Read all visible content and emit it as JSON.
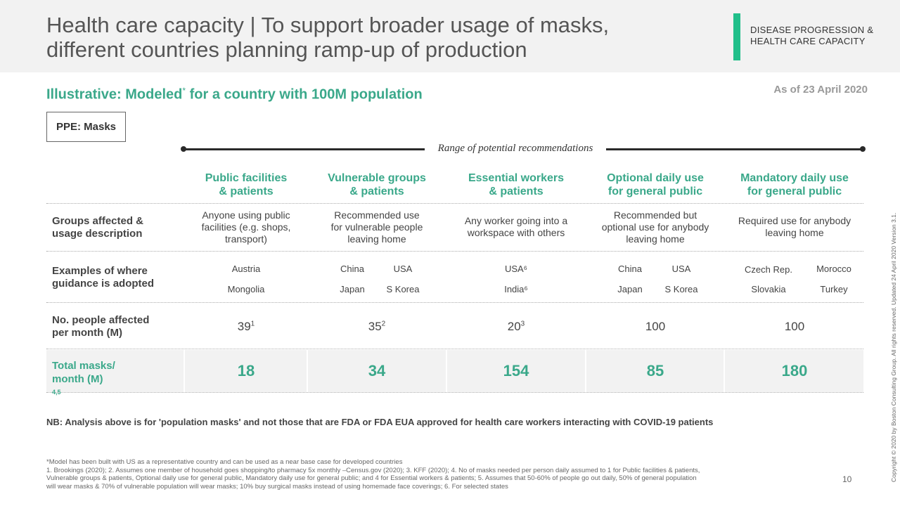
{
  "header": {
    "title_line1": "Health care capacity | To support broader usage of masks,",
    "title_line2": "different countries planning ramp-up of production",
    "section_line1": "DISEASE PROGRESSION &",
    "section_line2": "HEALTH CARE CAPACITY",
    "section_color": "#21bf8a"
  },
  "subtitle": {
    "text_a": "Illustrative: Modeled",
    "marker": "*",
    "text_b": " for a country with 100M population",
    "as_of": "As of 23 April 2020"
  },
  "tag": "PPE: Masks",
  "range_label": "Range of potential recommendations",
  "columns": [
    {
      "line1": "Public facilities",
      "line2": "& patients"
    },
    {
      "line1": "Vulnerable groups",
      "line2": "& patients"
    },
    {
      "line1": "Essential workers",
      "line2": "& patients"
    },
    {
      "line1": "Optional daily use",
      "line2": "for general public"
    },
    {
      "line1": "Mandatory daily use",
      "line2": "for general public"
    }
  ],
  "rows": {
    "groups": {
      "label1": "Groups affected &",
      "label2": "usage description",
      "cells": [
        [
          "Anyone using public",
          "facilities (e.g. shops,",
          "transport)"
        ],
        [
          "Recommended use",
          "for vulnerable people",
          "leaving home"
        ],
        [
          "Any worker going into a",
          "workspace with others"
        ],
        [
          "Recommended but",
          "optional use for anybody",
          "leaving home"
        ],
        [
          "Required use for anybody",
          "leaving home"
        ]
      ]
    },
    "examples": {
      "label1": "Examples of where",
      "label2": "guidance is adopted",
      "c1": [
        "Austria",
        "Mongolia"
      ],
      "c2": [
        "China",
        "USA",
        "Japan",
        "S Korea"
      ],
      "c3": [
        "USA⁶",
        "India⁶"
      ],
      "c4": [
        "China",
        "USA",
        "Japan",
        "S Korea"
      ],
      "c5": [
        "Czech Rep.",
        "Morocco",
        "Slovakia",
        "Turkey"
      ]
    },
    "people": {
      "label1": "No. people affected",
      "label2": "per month (M)",
      "values": [
        {
          "value": "39",
          "note": "1"
        },
        {
          "value": "35",
          "note": "2"
        },
        {
          "value": "20",
          "note": "3"
        },
        {
          "value": "100",
          "note": ""
        },
        {
          "value": "100",
          "note": ""
        }
      ]
    },
    "total": {
      "label1": "Total masks/",
      "label2": "month (M)",
      "label_note": "4,5",
      "values": [
        "18",
        "34",
        "154",
        "85",
        "180"
      ]
    }
  },
  "nb": "NB: Analysis above is for 'population masks' and not those that are FDA or FDA EUA approved for health care workers interacting with COVID-19 patients",
  "footnotes": [
    "*Model has been built with US as a representative country and can be used as a near base case for developed countries",
    "1. Brookings (2020); 2. Assumes one member of household goes shopping/to pharmacy 5x monthly –Census.gov (2020); 3. KFF (2020); 4. No of  masks needed per person daily assumed to 1 for Public facilities & patients,",
    "Vulnerable groups & patients, Optional daily use for general public, Mandatory daily use for general public; and 4 for Essential workers & patients; 5. Assumes that 50-60% of people go out daily, 50% of general population",
    "will wear masks & 70% of vulnerable population will wear masks; 10% buy surgical masks instead of using homemade face coverings; 6. For selected states"
  ],
  "page_number": "10",
  "copyright": "Copyright © 2020 by Boston Consulting Group. All rights reserved.  Updated 24 April 2020 Version 3.1."
}
